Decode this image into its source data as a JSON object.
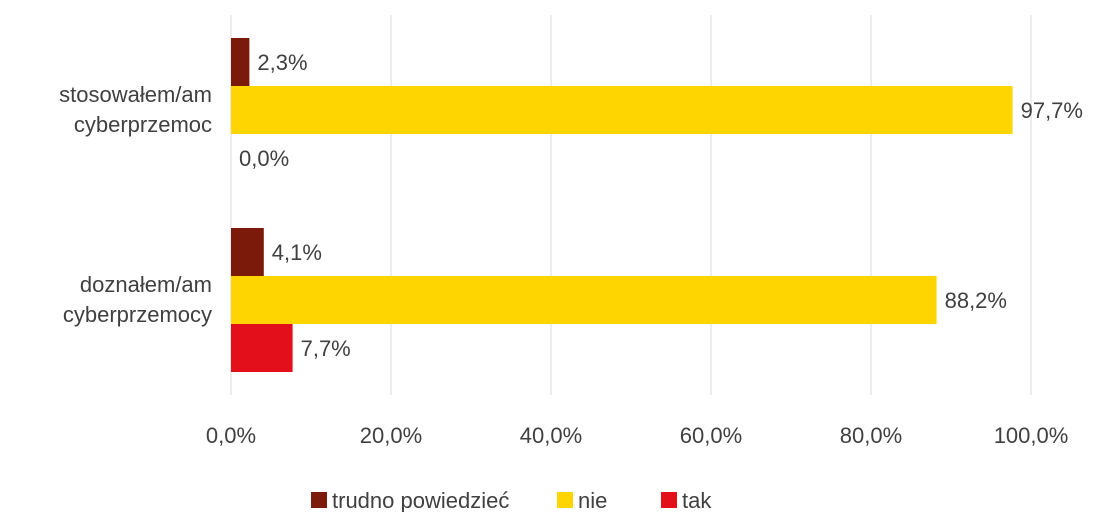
{
  "chart_data": {
    "type": "bar",
    "orientation": "horizontal",
    "categories": [
      "stosowałem/am cyberprzemoc",
      "doznałem/am cyberprzemocy"
    ],
    "series": [
      {
        "name": "trudno powiedzieć",
        "color": "#7b1a0a",
        "values": [
          2.3,
          4.1
        ],
        "value_labels": [
          "2,3%",
          "4,1%"
        ]
      },
      {
        "name": "nie",
        "color": "#ffd500",
        "values": [
          97.7,
          88.2
        ],
        "value_labels": [
          "97,7%",
          "88,2%"
        ]
      },
      {
        "name": "tak",
        "color": "#e3101b",
        "values": [
          0.0,
          7.7
        ],
        "value_labels": [
          "0,0%",
          "7,7%"
        ]
      }
    ],
    "xlim": [
      0,
      100
    ],
    "xticks": [
      {
        "value": 0,
        "label": "0,0%"
      },
      {
        "value": 20,
        "label": "20,0%"
      },
      {
        "value": 40,
        "label": "40,0%"
      },
      {
        "value": 60,
        "label": "60,0%"
      },
      {
        "value": 80,
        "label": "80,0%"
      },
      {
        "value": 100,
        "label": "100,0%"
      }
    ],
    "grid": true,
    "legend": "bottom"
  }
}
